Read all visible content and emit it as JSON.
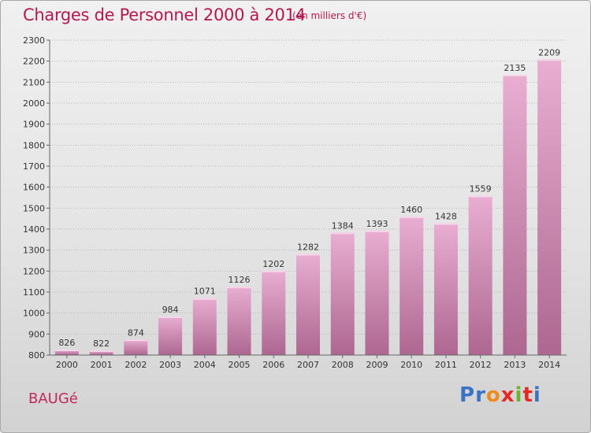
{
  "header": {
    "title": "Charges de Personnel 2000 à 2014",
    "subtitle": "(en milliers d'€)"
  },
  "footer": {
    "commune": "BAUGé",
    "brand": "Proxiti"
  },
  "colors": {
    "title": "#b5174f",
    "bar_light": "#e6a8cd",
    "bar_dark": "#b06a93",
    "grid": "#b8b8b8"
  },
  "chart_data": {
    "type": "bar",
    "title": "Charges de Personnel 2000 à 2014",
    "subtitle": "(en milliers d'€)",
    "categories": [
      "2000",
      "2001",
      "2002",
      "2003",
      "2004",
      "2005",
      "2006",
      "2007",
      "2008",
      "2009",
      "2010",
      "2011",
      "2012",
      "2013",
      "2014"
    ],
    "values": [
      826,
      822,
      874,
      984,
      1071,
      1126,
      1202,
      1282,
      1384,
      1393,
      1460,
      1428,
      1559,
      2135,
      2209
    ],
    "ylim": [
      800,
      2300
    ],
    "yticks": [
      800,
      900,
      1000,
      1100,
      1200,
      1300,
      1400,
      1500,
      1600,
      1700,
      1800,
      1900,
      2000,
      2100,
      2200,
      2300
    ],
    "grid": true,
    "xlabel": "",
    "ylabel": ""
  }
}
